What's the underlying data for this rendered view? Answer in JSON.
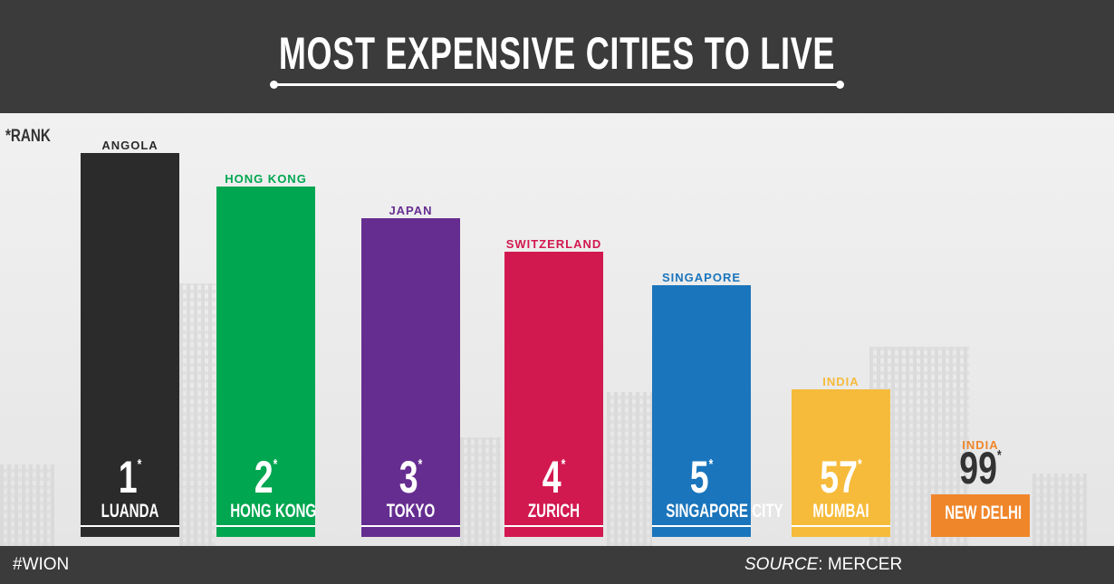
{
  "header": {
    "title": "MOST EXPENSIVE CITIES TO LIVE"
  },
  "note": "*RANK",
  "rank_marker": "*",
  "items": [
    {
      "country": "ANGOLA",
      "rank": 1,
      "city": "LUANDA",
      "color": "#2b2b2b"
    },
    {
      "country": "HONG KONG",
      "rank": 2,
      "city": "HONG KONG",
      "color": "#00a650"
    },
    {
      "country": "JAPAN",
      "rank": 3,
      "city": "TOKYO",
      "color": "#662d91"
    },
    {
      "country": "SWITZERLAND",
      "rank": 4,
      "city": "ZURICH",
      "color": "#d2194f"
    },
    {
      "country": "SINGAPORE",
      "rank": 5,
      "city": "SINGAPORE CITY",
      "color": "#1a75bc"
    },
    {
      "country": "INDIA",
      "rank": 57,
      "city": "MUMBAI",
      "color": "#f6bb3a"
    },
    {
      "country": "INDIA",
      "rank": 99,
      "city": "NEW DELHI",
      "color": "#f0862a"
    }
  ],
  "footer": {
    "hashtag": "#WION",
    "source_label": "SOURCE",
    "source": ": MERCER"
  }
}
